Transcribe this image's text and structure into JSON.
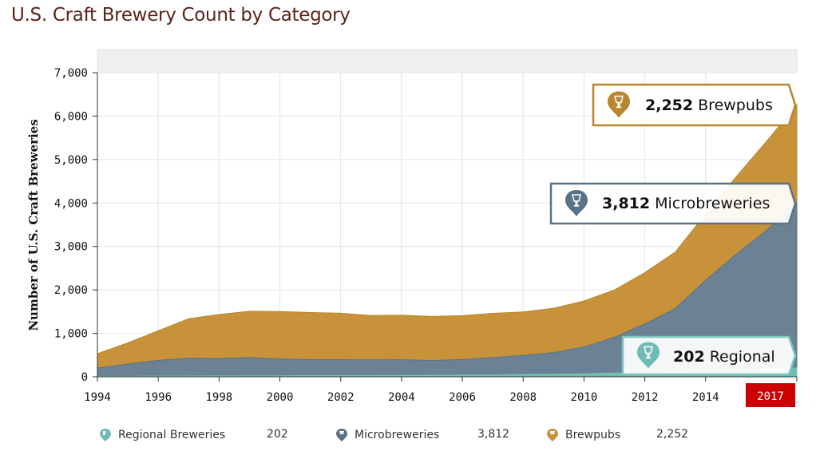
{
  "title": "U.S. Craft Brewery Count by Category",
  "colors": {
    "regional": "#6fbcb4",
    "micro": "#6a8294",
    "brewpub": "#c8923a",
    "micro_border": "#5b7386",
    "brewpub_border": "#b7862e",
    "regional_border": "#7cc6bd",
    "highlight": "#cc0000"
  },
  "chart_data": {
    "type": "area",
    "stacked": true,
    "title": "U.S. Craft Brewery Count by Category",
    "xlabel": "",
    "ylabel": "Number of U.S. Craft Breweries",
    "xlim": [
      1994,
      2017
    ],
    "ylim": [
      0,
      7000
    ],
    "x_ticks": [
      "1994",
      "1996",
      "1998",
      "2000",
      "2002",
      "2004",
      "2006",
      "2008",
      "2010",
      "2012",
      "2014",
      "2017"
    ],
    "y_ticks": [
      "0",
      "1,000",
      "2,000",
      "3,000",
      "4,000",
      "5,000",
      "6,000",
      "7,000"
    ],
    "grid": true,
    "highlighted_x": "2017",
    "x": [
      1994,
      1995,
      1996,
      1997,
      1998,
      1999,
      2000,
      2001,
      2002,
      2003,
      2004,
      2005,
      2006,
      2007,
      2008,
      2009,
      2010,
      2011,
      2012,
      2013,
      2014,
      2015,
      2016,
      2017
    ],
    "series": [
      {
        "name": "Regional Breweries",
        "key": "regional",
        "values": [
          10,
          12,
          15,
          17,
          18,
          20,
          22,
          25,
          28,
          30,
          32,
          34,
          36,
          40,
          52,
          58,
          66,
          88,
          97,
          120,
          140,
          178,
          186,
          202
        ]
      },
      {
        "name": "Microbreweries",
        "key": "micro",
        "values": [
          192,
          280,
          365,
          410,
          405,
          420,
          390,
          370,
          365,
          360,
          360,
          340,
          362,
          400,
          440,
          500,
          620,
          820,
          1120,
          1450,
          2080,
          2640,
          3180,
          3812
        ]
      },
      {
        "name": "Brewpubs",
        "key": "brewpub",
        "values": [
          330,
          490,
          680,
          910,
          1010,
          1070,
          1090,
          1085,
          1070,
          1020,
          1025,
          1015,
          1010,
          1020,
          1000,
          1020,
          1060,
          1090,
          1180,
          1300,
          1530,
          1780,
          2050,
          2252
        ]
      }
    ]
  },
  "callouts": [
    {
      "key": "brewpub",
      "value": "2,252",
      "label": "Brewpubs"
    },
    {
      "key": "micro",
      "value": "3,812",
      "label": "Microbreweries"
    },
    {
      "key": "regional",
      "value": "202",
      "label": "Regional"
    }
  ],
  "legend": [
    {
      "key": "regional",
      "label": "Regional Breweries",
      "value": "202"
    },
    {
      "key": "micro",
      "label": "Microbreweries",
      "value": "3,812"
    },
    {
      "key": "brewpub",
      "label": "Brewpubs",
      "value": "2,252"
    }
  ]
}
